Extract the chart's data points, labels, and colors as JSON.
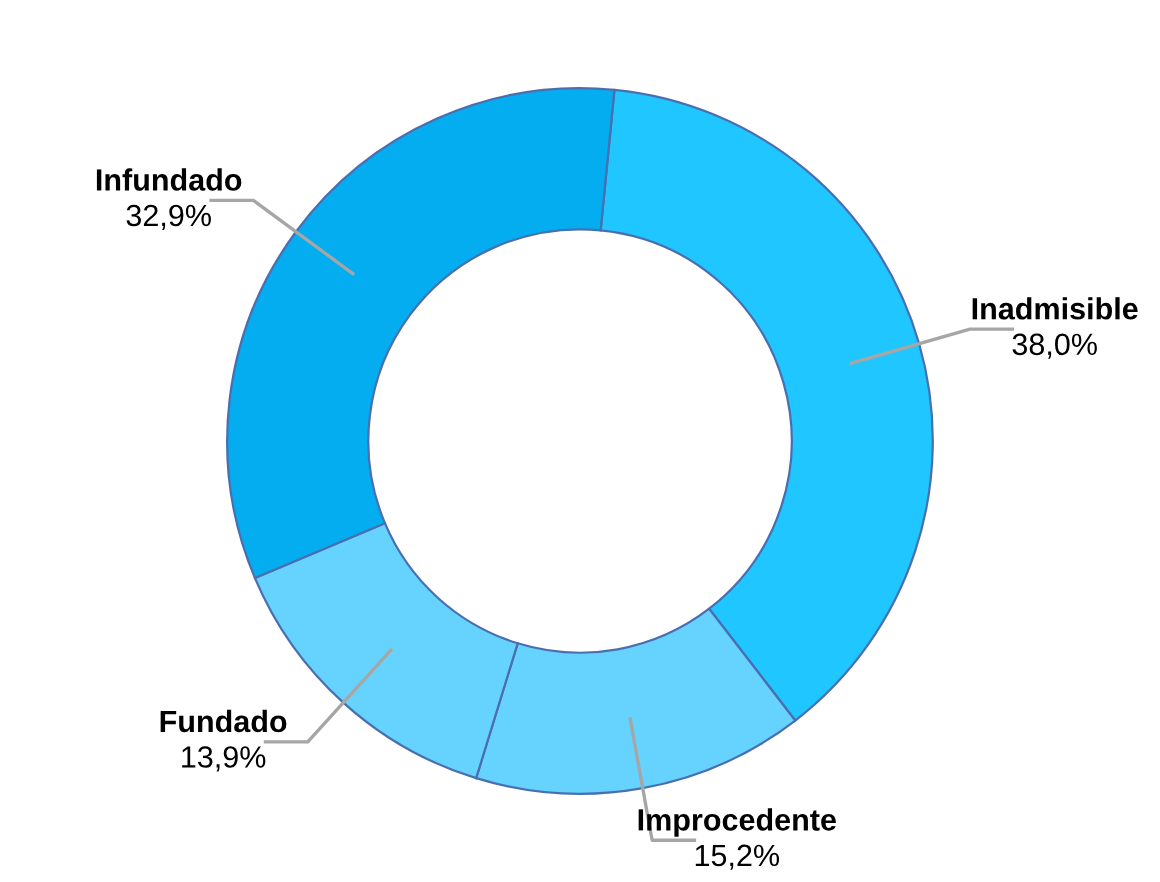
{
  "chart_data": {
    "type": "donut",
    "categories": [
      "Inadmisible",
      "Improcedente",
      "Fundado",
      "Infundado"
    ],
    "values": [
      38.0,
      15.2,
      13.9,
      32.9
    ],
    "value_labels": [
      "38,0%",
      "15,2%",
      "13,9%",
      "32,9%"
    ],
    "colors": [
      "#1fc6ff",
      "#66d3ff",
      "#66d3ff",
      "#04acf0"
    ],
    "legend": false
  }
}
